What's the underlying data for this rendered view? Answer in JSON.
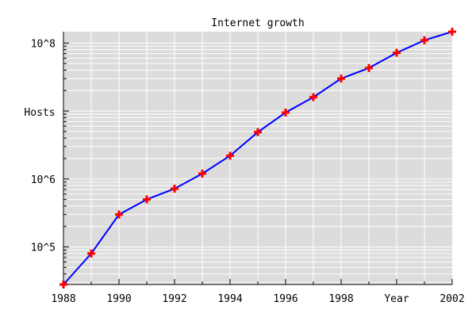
{
  "chart_data": {
    "type": "line",
    "title": "Internet growth",
    "xlabel": "Year",
    "ylabel": "Hosts",
    "y_scale": "log",
    "xlim": [
      1988,
      2002
    ],
    "ylim": [
      28000,
      147000000
    ],
    "grid": true,
    "colors": {
      "plot_background": "#dcdcdc",
      "grid": "#ffffff",
      "line": "#0000ff",
      "marker": "#ff0000"
    },
    "x_ticks": [
      {
        "value": 1988,
        "label": "1988"
      },
      {
        "value": 1990,
        "label": "1990"
      },
      {
        "value": 1992,
        "label": "1992"
      },
      {
        "value": 1994,
        "label": "1994"
      },
      {
        "value": 1996,
        "label": "1996"
      },
      {
        "value": 1998,
        "label": "1998"
      },
      {
        "value": 2002,
        "label": "2002"
      }
    ],
    "y_ticks": [
      {
        "value": 100000,
        "label": "10^5"
      },
      {
        "value": 1000000,
        "label": "10^6"
      },
      {
        "value": 100000000,
        "label": "10^8"
      }
    ],
    "series": [
      {
        "marker": "plus",
        "x": [
          1988,
          1989,
          1990,
          1991,
          1992,
          1993,
          1994,
          1995,
          1996,
          1997,
          1998,
          1999,
          2000,
          2001,
          2002
        ],
        "y": [
          28000,
          80000,
          300000,
          500000,
          720000,
          1200000,
          2200000,
          4900000,
          9500000,
          16000000,
          30000000,
          43000000,
          72000000,
          110000000,
          147000000
        ]
      }
    ]
  }
}
